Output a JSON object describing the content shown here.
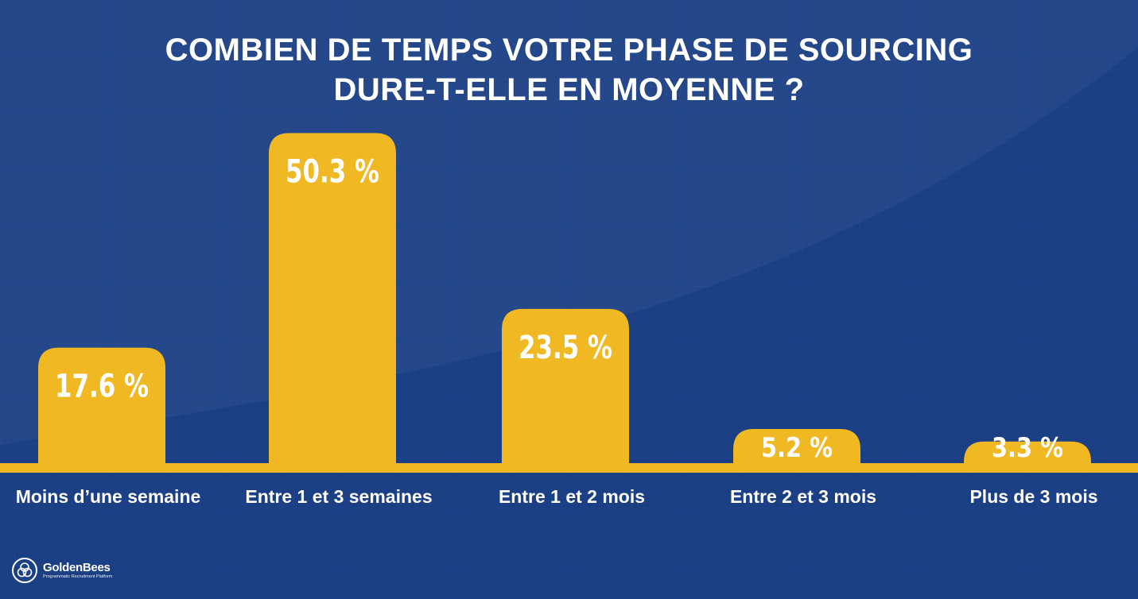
{
  "colors": {
    "background": "#1b3f85",
    "bar": "#f0b823",
    "baseline": "#f0b823",
    "text": "#ffffff"
  },
  "brand": {
    "name": "GoldenBees",
    "tagline": "Programmatic Recruitment Platform",
    "icon": "goldenbees-logo-icon"
  },
  "chart_data": {
    "type": "bar",
    "title": "COMBIEN DE TEMPS VOTRE PHASE DE SOURCING DURE-T-ELLE EN MOYENNE ?",
    "title_lines": [
      "COMBIEN DE TEMPS VOTRE PHASE DE SOURCING",
      "DURE-T-ELLE EN MOYENNE ?"
    ],
    "categories": [
      "Moins d’une semaine",
      "Entre 1 et 3 semaines",
      "Entre 1 et 2 mois",
      "Entre 2 et 3 mois",
      "Plus de 3 mois"
    ],
    "values": [
      17.6,
      50.3,
      23.5,
      5.2,
      3.3
    ],
    "value_labels": [
      "17.6 %",
      "50.3 %",
      "23.5 %",
      "5.2 %",
      "3.3 %"
    ],
    "unit": "%",
    "xlabel": "",
    "ylabel": "",
    "grid": false,
    "legend": "none"
  }
}
